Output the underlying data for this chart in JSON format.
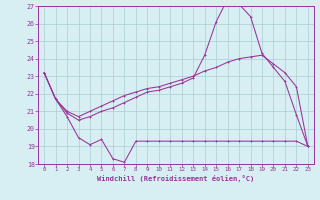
{
  "bg_color": "#d7eef2",
  "grid_color": "#aacdd5",
  "line_color": "#993399",
  "xlabel": "Windchill (Refroidissement éolien,°C)",
  "xlim": [
    -0.5,
    23.5
  ],
  "ylim": [
    18,
    27
  ],
  "yticks": [
    18,
    19,
    20,
    21,
    22,
    23,
    24,
    25,
    26,
    27
  ],
  "xticks": [
    0,
    1,
    2,
    3,
    4,
    5,
    6,
    7,
    8,
    9,
    10,
    11,
    12,
    13,
    14,
    15,
    16,
    17,
    18,
    19,
    20,
    21,
    22,
    23
  ],
  "line1_x": [
    0,
    1,
    2,
    3,
    4,
    5,
    6,
    7,
    8,
    9,
    10,
    11,
    12,
    13,
    14,
    15,
    16,
    17,
    18,
    19,
    20,
    21,
    22,
    23
  ],
  "line1_y": [
    23.2,
    21.7,
    20.7,
    19.5,
    19.1,
    19.4,
    18.3,
    18.1,
    19.3,
    19.3,
    19.3,
    19.3,
    19.3,
    19.3,
    19.3,
    19.3,
    19.3,
    19.3,
    19.3,
    19.3,
    19.3,
    19.3,
    19.3,
    19.0
  ],
  "line2_x": [
    0,
    1,
    2,
    3,
    4,
    5,
    6,
    7,
    8,
    9,
    10,
    11,
    12,
    13,
    14,
    15,
    16,
    17,
    18,
    19,
    20,
    21,
    22,
    23
  ],
  "line2_y": [
    23.2,
    21.7,
    20.9,
    20.5,
    20.7,
    21.0,
    21.2,
    21.5,
    21.8,
    22.1,
    22.2,
    22.4,
    22.6,
    22.9,
    24.2,
    26.1,
    27.4,
    27.1,
    26.4,
    24.3,
    23.5,
    22.7,
    20.8,
    19.0
  ],
  "line3_x": [
    0,
    1,
    2,
    3,
    4,
    5,
    6,
    7,
    8,
    9,
    10,
    11,
    12,
    13,
    14,
    15,
    16,
    17,
    18,
    19,
    20,
    21,
    22,
    23
  ],
  "line3_y": [
    23.2,
    21.7,
    21.0,
    20.7,
    21.0,
    21.3,
    21.6,
    21.9,
    22.1,
    22.3,
    22.4,
    22.6,
    22.8,
    23.0,
    23.3,
    23.5,
    23.8,
    24.0,
    24.1,
    24.2,
    23.7,
    23.2,
    22.4,
    19.0
  ]
}
